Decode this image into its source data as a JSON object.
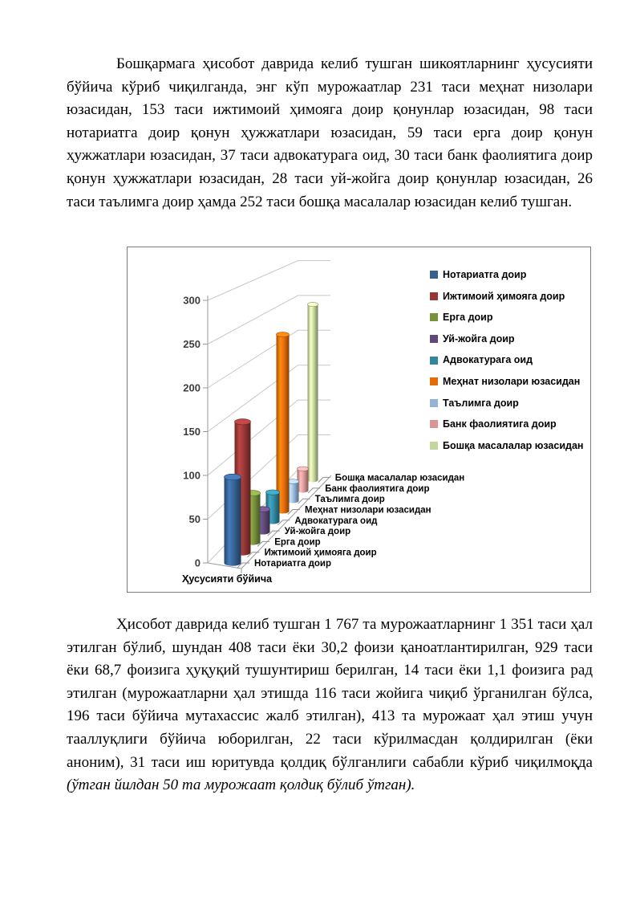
{
  "document": {
    "paragraph1": "Бошқармага ҳисобот даврида келиб тушган шикоятларнинг ҳусусияти бўйича кўриб чиқилганда, энг кўп мурожаатлар 231 таси меҳнат низолари юзасидан, 153 таси ижтимоий ҳимояга доир қонунлар юзасидан, 98 таси нотариатга доир қонун ҳужжатлари юзасидан, 59 таси ерга доир қонун ҳужжатлари юзасидан, 37 таси адвокатурага оид, 30 таси банк фаолиятига доир қонун ҳужжатлари юзасидан, 28 таси уй-жойга доир қонунлар юзасидан, 26 таси таълимга доир ҳамда 252 таси бошқа масалалар юзасидан келиб тушган.",
    "paragraph2": {
      "normal": "Ҳисобот даврида келиб тушган 1 767 та мурожаатларнинг 1 351 таси ҳал этилган бўлиб, шундан 408 таси ёки 30,2 фоизи қаноатлантирилган, 929 таси ёки 68,7 фоизига ҳуқуқий тушунтириш берилган, 14 таси ёки 1,1 фоизига рад этилган (мурожаатларни ҳал этишда 116 таси жойига чиқиб ўрганилган бўлса, 196 таси бўйича мутахассис жалб этилган), 413 та мурожаат ҳал этиш учун тааллуқлиги бўйича юборилган, 22 таси кўрилмасдан қолдирилган (ёки аноним), 31 таси иш юритувда қолдиқ бўлганлиги сабабли кўриб чиқилмоқда ",
      "italic": "(ўтган йилдан 50 та мурожаат қолдиқ бўлиб ўтган)."
    }
  },
  "chart_data": {
    "type": "bar",
    "subtype": "3d-cylinder",
    "title": "",
    "xlabel": "Ҳусусияти бўйича",
    "ylabel": "",
    "ylim": [
      0,
      300
    ],
    "yticks": [
      0,
      50,
      100,
      150,
      200,
      250,
      300
    ],
    "grid": true,
    "legend_position": "right",
    "categories": [
      "Ҳусусияти бўйича"
    ],
    "series": [
      {
        "name": "Нотариатга доир",
        "value": 98,
        "color": "#366092"
      },
      {
        "name": "Ижтимоий ҳимояга доир",
        "value": 153,
        "color": "#953735"
      },
      {
        "name": "Ерга доир",
        "value": 59,
        "color": "#76923C"
      },
      {
        "name": "Уй-жойга доир",
        "value": 28,
        "color": "#5F497A"
      },
      {
        "name": "Адвокатурага оид",
        "value": 37,
        "color": "#31859C"
      },
      {
        "name": "Меҳнат низолари юзасидан",
        "value": 231,
        "color": "#E36C0A"
      },
      {
        "name": "Таълимга доир",
        "value": 26,
        "color": "#95B3D7"
      },
      {
        "name": "Банк фаолиятига доир",
        "value": 30,
        "color": "#D99694"
      },
      {
        "name": "Бошқа масалалар юзасидан",
        "value": 252,
        "color": "#C3D69B"
      }
    ],
    "gridline_color": "#C8C8C8",
    "axis_color": "#9A9A9A",
    "tick_label_color": "#3d3d3d"
  }
}
